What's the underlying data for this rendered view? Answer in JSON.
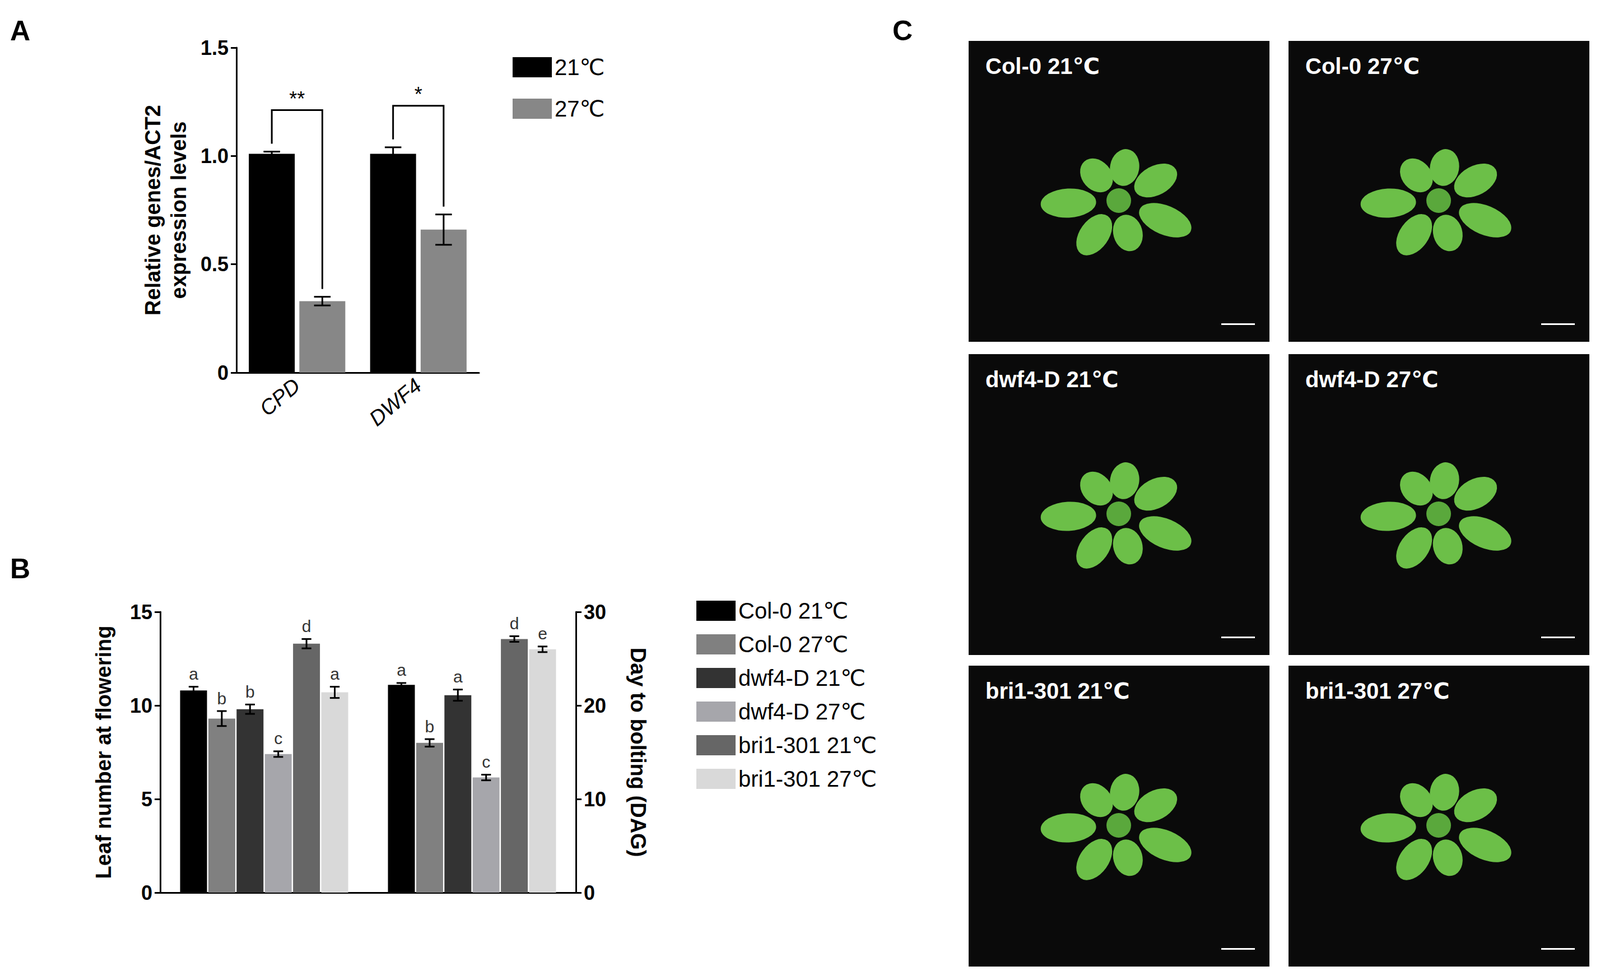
{
  "chart_data": [
    {
      "type": "bar",
      "title": "A",
      "categories": [
        "CPD",
        "DWF4"
      ],
      "ylabel": "Relative genes/ACT2 expression levels",
      "ylim": [
        0,
        1.5
      ],
      "yticks": [
        0,
        0.5,
        {
          "value": 1,
          "label": "1.0"
        },
        1.5
      ],
      "legend": "right",
      "grid": false,
      "series": [
        {
          "name": "21℃",
          "color": "#000000",
          "values": [
            1.01,
            1.01
          ],
          "errors": [
            0.01,
            0.03
          ]
        },
        {
          "name": "27℃",
          "color": "#878787",
          "values": [
            0.33,
            0.66
          ],
          "errors": [
            0.02,
            0.07
          ]
        }
      ],
      "annotations": [
        {
          "category": "CPD",
          "text": "**"
        },
        {
          "category": "DWF4",
          "text": "*"
        }
      ]
    },
    {
      "type": "bar",
      "title": "B",
      "categories": [
        null
      ],
      "ylabel": "Leaf number at flowering",
      "ylim": [
        0,
        15
      ],
      "yticks": [
        0,
        5,
        10,
        15
      ],
      "grid": false,
      "series": [
        {
          "name": "Col-0 21℃",
          "color": "#000000",
          "values": [
            10.8
          ],
          "errors": [
            0.2
          ],
          "annotations": [
            "a"
          ]
        },
        {
          "name": "Col-0 27℃",
          "color": "#808080",
          "values": [
            9.3
          ],
          "errors": [
            0.4
          ],
          "annotations": [
            "b"
          ]
        },
        {
          "name": "dwf4-D 21℃",
          "color": "#333333",
          "values": [
            9.8
          ],
          "errors": [
            0.25
          ],
          "annotations": [
            "b"
          ]
        },
        {
          "name": "dwf4-D 27℃",
          "color": "#a6a6ab",
          "values": [
            7.4
          ],
          "errors": [
            0.15
          ],
          "annotations": [
            "c"
          ]
        },
        {
          "name": "bri1-301 21℃",
          "color": "#666666",
          "values": [
            13.3
          ],
          "errors": [
            0.25
          ],
          "annotations": [
            "d"
          ]
        },
        {
          "name": "bri1-301 27℃",
          "color": "#d9d9d9",
          "values": [
            10.7
          ],
          "errors": [
            0.3
          ],
          "annotations": [
            "a"
          ]
        }
      ]
    },
    {
      "type": "bar",
      "categories": [
        null
      ],
      "ylabel": "Day to bolting (DAG)",
      "ylim": [
        0,
        30
      ],
      "yticks": [
        0,
        10,
        20,
        30
      ],
      "legend": "right",
      "grid": false,
      "series": [
        {
          "name": "Col-0 21℃",
          "color": "#000000",
          "values": [
            22.2
          ],
          "errors": [
            0.2
          ],
          "annotations": [
            "a"
          ]
        },
        {
          "name": "Col-0 27℃",
          "color": "#808080",
          "values": [
            16.0
          ],
          "errors": [
            0.4
          ],
          "annotations": [
            "b"
          ]
        },
        {
          "name": "dwf4-D 21℃",
          "color": "#333333",
          "values": [
            21.1
          ],
          "errors": [
            0.6
          ],
          "annotations": [
            "a"
          ]
        },
        {
          "name": "dwf4-D 27℃",
          "color": "#a6a6ab",
          "values": [
            12.3
          ],
          "errors": [
            0.3
          ],
          "annotations": [
            "c"
          ]
        },
        {
          "name": "bri1-301 21℃",
          "color": "#666666",
          "values": [
            27.1
          ],
          "errors": [
            0.3
          ],
          "annotations": [
            "d"
          ]
        },
        {
          "name": "bri1-301 27℃",
          "color": "#d9d9d9",
          "values": [
            26.0
          ],
          "errors": [
            0.3
          ],
          "annotations": [
            "e"
          ]
        }
      ]
    }
  ],
  "images": {
    "title": "C",
    "panels": [
      {
        "label": "Col-0 21℃"
      },
      {
        "label": "Col-0 27℃"
      },
      {
        "label": "dwf4-D 21℃"
      },
      {
        "label": "dwf4-D 27℃"
      },
      {
        "label": "bri1-301 21℃"
      },
      {
        "label": "bri1-301 27℃"
      }
    ]
  }
}
